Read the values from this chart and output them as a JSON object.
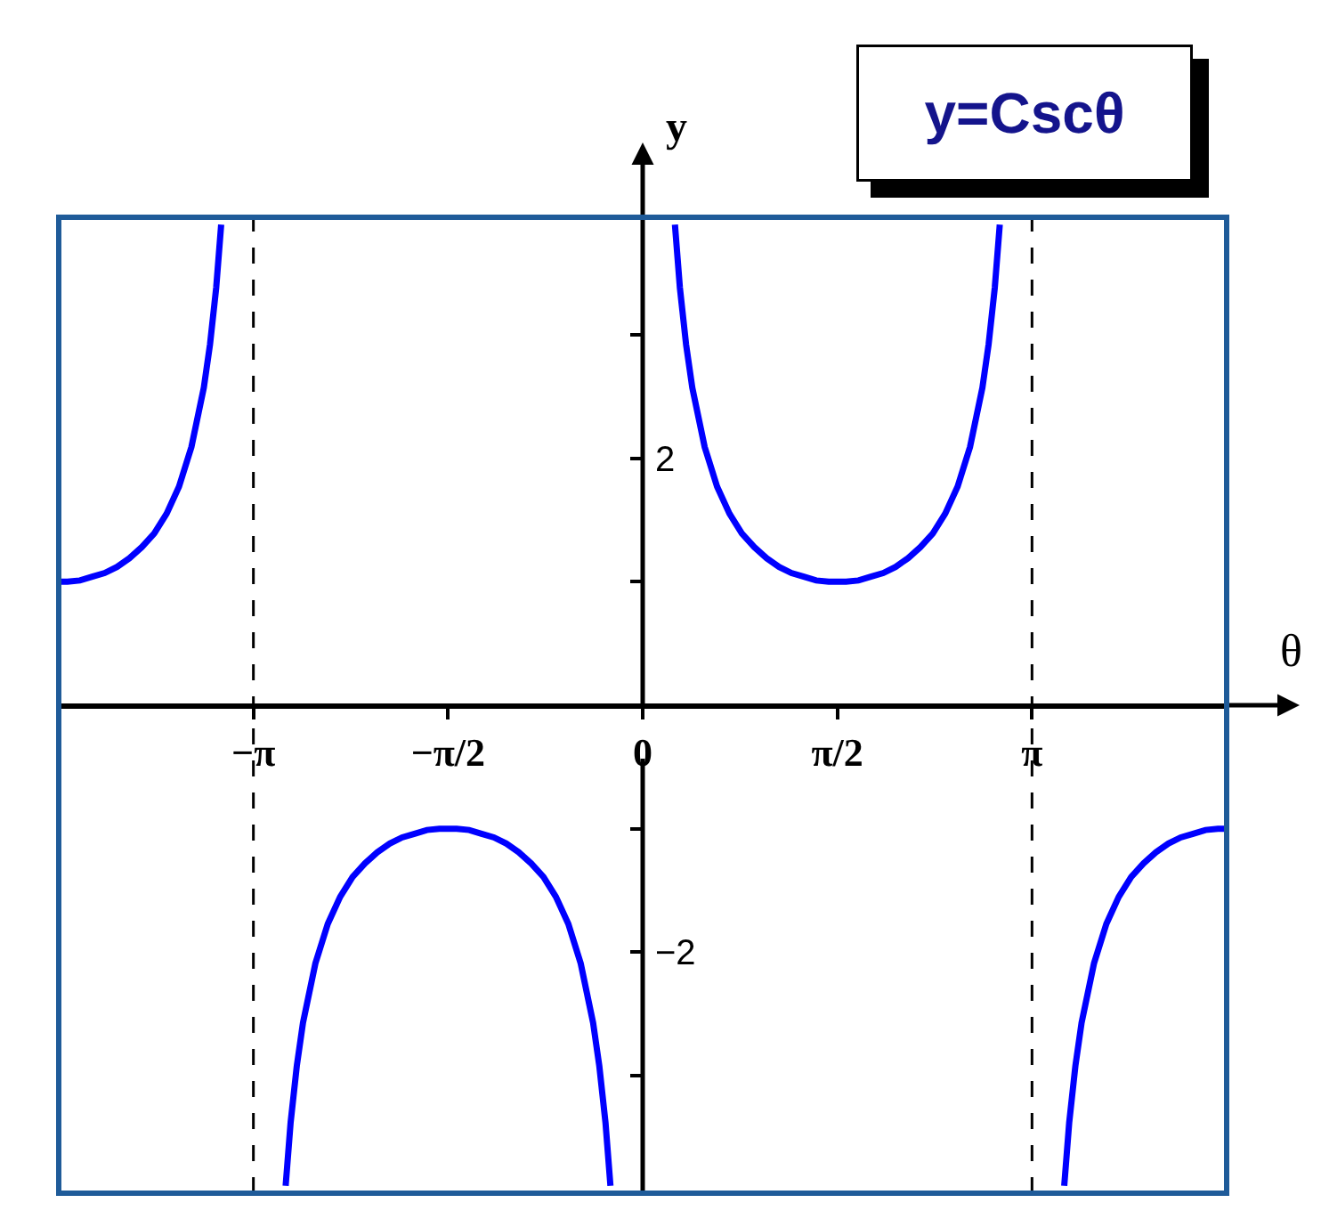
{
  "chart_data": {
    "type": "line",
    "title": "y=Cscθ",
    "xlabel": "θ",
    "ylabel": "y",
    "xlim": [
      -4.71,
      4.71
    ],
    "ylim": [
      -3.95,
      3.95
    ],
    "xticks": [
      {
        "value": -3.14,
        "label": "−π"
      },
      {
        "value": -1.57,
        "label": "−π/2"
      },
      0,
      {
        "value": 1.57,
        "label": "π/2"
      },
      {
        "value": 3.14,
        "label": "π"
      }
    ],
    "yticks": [
      {
        "value": -3,
        "label": null
      },
      {
        "value": -2,
        "label": "−2"
      },
      {
        "value": -1,
        "label": null
      },
      {
        "value": 1,
        "label": null
      },
      2,
      {
        "value": 3,
        "label": null
      }
    ],
    "x": [
      -4.71,
      -4.64,
      -4.54,
      -4.44,
      -4.34,
      -4.24,
      -4.14,
      -4.04,
      -3.94,
      -3.84,
      -3.74,
      -3.64,
      -3.54,
      -3.49,
      -3.44,
      -3.4,
      -3.14,
      -2.88,
      -2.84,
      -2.79,
      -2.74,
      -2.64,
      -2.54,
      -2.44,
      -2.34,
      -2.24,
      -2.14,
      -2.04,
      -1.94,
      -1.84,
      -1.74,
      -1.64,
      -1.57,
      -1.5,
      -1.4,
      -1.3,
      -1.2,
      -1.1,
      -1.0,
      -0.9,
      -0.8,
      -0.7,
      -0.6,
      -0.5,
      -0.4,
      -0.35,
      -0.3,
      -0.26,
      0,
      0.26,
      0.3,
      0.35,
      0.4,
      0.5,
      0.6,
      0.7,
      0.8,
      0.9,
      1.0,
      1.1,
      1.2,
      1.3,
      1.4,
      1.5,
      1.57,
      1.64,
      1.74,
      1.84,
      1.94,
      2.04,
      2.14,
      2.24,
      2.34,
      2.44,
      2.54,
      2.64,
      2.74,
      2.79,
      2.84,
      2.88,
      3.14,
      3.4,
      3.44,
      3.49,
      3.54,
      3.64,
      3.74,
      3.84,
      3.94,
      4.04,
      4.14,
      4.24,
      4.34,
      4.44,
      4.54,
      4.64,
      4.71
    ],
    "series": [
      {
        "color": "#0000ff",
        "values": [
          1,
          1.0,
          1.01,
          1.04,
          1.07,
          1.12,
          1.19,
          1.28,
          1.39,
          1.55,
          1.77,
          2.09,
          2.57,
          2.92,
          3.38,
          3.89,
          null,
          -3.89,
          -3.38,
          -2.92,
          -2.57,
          -2.09,
          -1.77,
          -1.55,
          -1.39,
          -1.28,
          -1.19,
          -1.12,
          -1.07,
          -1.04,
          -1.01,
          -1.0,
          -1,
          -1.0,
          -1.01,
          -1.04,
          -1.07,
          -1.12,
          -1.19,
          -1.28,
          -1.39,
          -1.55,
          -1.77,
          -2.09,
          -2.57,
          -2.92,
          -3.38,
          -3.89,
          null,
          3.89,
          3.38,
          2.92,
          2.57,
          2.09,
          1.77,
          1.55,
          1.39,
          1.28,
          1.19,
          1.12,
          1.07,
          1.04,
          1.01,
          1.0,
          1,
          1.0,
          1.01,
          1.04,
          1.07,
          1.12,
          1.19,
          1.28,
          1.39,
          1.55,
          1.77,
          2.09,
          2.57,
          2.92,
          3.38,
          3.89,
          null,
          -3.89,
          -3.38,
          -2.92,
          -2.57,
          -2.09,
          -1.77,
          -1.55,
          -1.39,
          -1.28,
          -1.19,
          -1.12,
          -1.07,
          -1.04,
          -1.01,
          -1.0,
          -1
        ]
      }
    ],
    "ref_lines": [
      {
        "axis": "x",
        "value": -3.14,
        "color": "#000000",
        "line_style": "dashed"
      },
      {
        "axis": "x",
        "value": 3.14,
        "color": "#000000",
        "line_style": "dashed"
      }
    ]
  }
}
